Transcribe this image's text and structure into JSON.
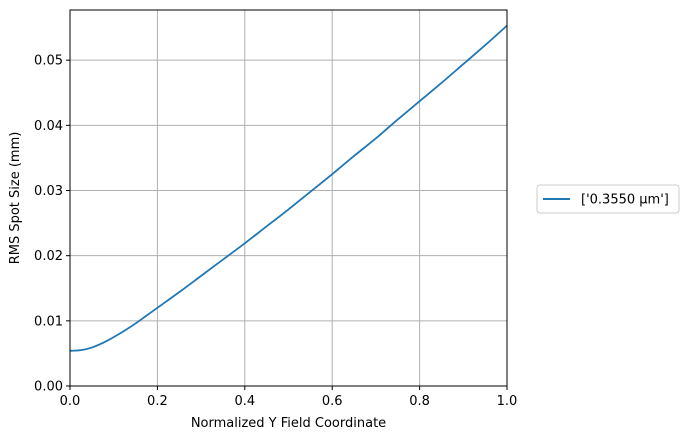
{
  "chart_data": {
    "type": "line",
    "title": "",
    "xlabel": "Normalized Y Field Coordinate",
    "ylabel": "RMS Spot Size (mm)",
    "xlim": [
      0,
      1
    ],
    "ylim": [
      0,
      0.0577
    ],
    "x_ticks": [
      0.0,
      0.2,
      0.4,
      0.6,
      0.8,
      1.0
    ],
    "x_tick_labels": [
      "0.0",
      "0.2",
      "0.4",
      "0.6",
      "0.8",
      "1.0"
    ],
    "y_ticks": [
      0.0,
      0.01,
      0.02,
      0.03,
      0.04,
      0.05
    ],
    "y_tick_labels": [
      "0.00",
      "0.01",
      "0.02",
      "0.03",
      "0.04",
      "0.05"
    ],
    "grid": true,
    "legend_position": "outside-right",
    "series": [
      {
        "name": "['0.3550 µm']",
        "color": "#1f77b4",
        "x": [
          0.0,
          0.025,
          0.05,
          0.075,
          0.1,
          0.125,
          0.15,
          0.175,
          0.2,
          0.25,
          0.3,
          0.35,
          0.4,
          0.45,
          0.5,
          0.55,
          0.6,
          0.65,
          0.7,
          0.75,
          0.8,
          0.85,
          0.9,
          0.95,
          1.0
        ],
        "y": [
          0.0054,
          0.0055,
          0.0059,
          0.0066,
          0.0075,
          0.0085,
          0.0096,
          0.0108,
          0.012,
          0.0144,
          0.0169,
          0.0194,
          0.0219,
          0.0245,
          0.0271,
          0.0298,
          0.0325,
          0.0353,
          0.038,
          0.0409,
          0.0437,
          0.0465,
          0.0494,
          0.0523,
          0.0553
        ]
      }
    ]
  }
}
